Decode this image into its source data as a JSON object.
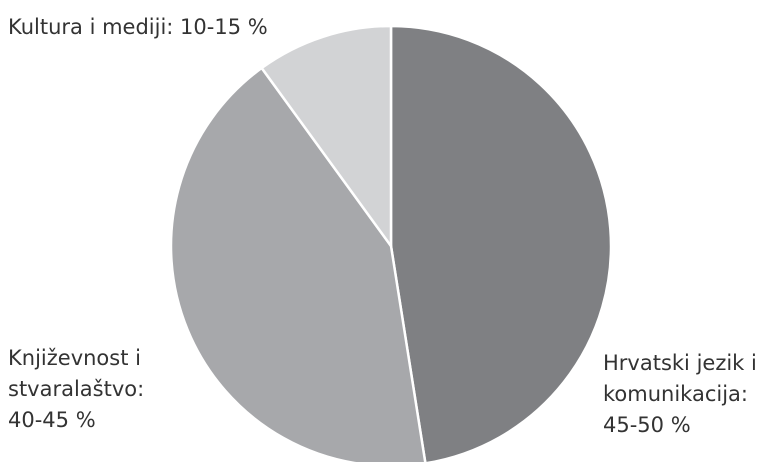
{
  "chart_data": {
    "type": "pie",
    "slices": [
      {
        "label_lines": [
          "Hrvatski jezik i",
          "komunikacija:",
          "45-50 %"
        ],
        "value": 47.5,
        "color": "#7f8083"
      },
      {
        "label_lines": [
          "Književnost i",
          "stvaralaštvo:",
          "40-45 %"
        ],
        "value": 42.5,
        "color": "#a7a8ab"
      },
      {
        "label_lines": [
          "Kultura i mediji: 10-15 %"
        ],
        "value": 10,
        "color": "#d2d3d5"
      }
    ]
  }
}
